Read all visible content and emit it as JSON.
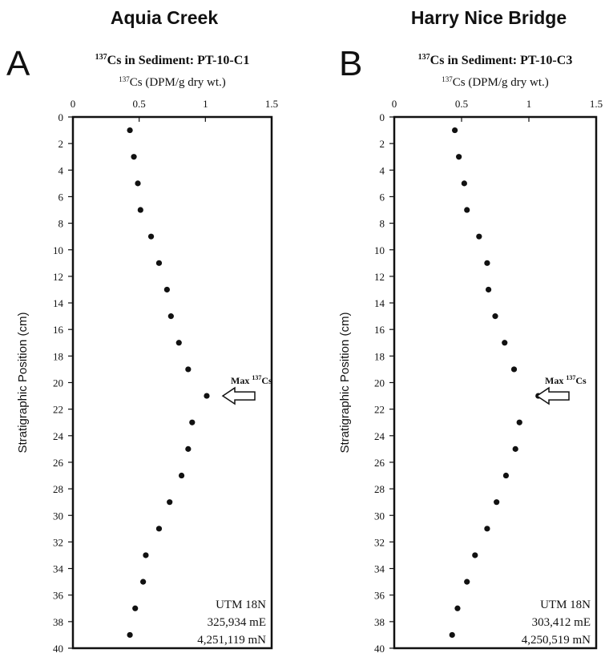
{
  "chart_data": [
    {
      "type": "scatter",
      "site": "Aquia Creek",
      "panel_letter": "A",
      "title_prefix": "137",
      "title": "Cs in Sediment: PT-10-C1",
      "xlabel_sup": "137",
      "xlabel": "Cs (DPM/g dry wt.)",
      "ylabel": "Stratigraphic Position (cm)",
      "xlim": [
        0,
        1.5
      ],
      "ylim": [
        0,
        40
      ],
      "x_ticks": [
        "0",
        "0.5",
        "1",
        "1.5"
      ],
      "y_ticks": [
        "0",
        "2",
        "4",
        "6",
        "8",
        "10",
        "12",
        "14",
        "16",
        "18",
        "20",
        "22",
        "24",
        "26",
        "28",
        "30",
        "32",
        "34",
        "36",
        "38",
        "40"
      ],
      "y_inverted": true,
      "points": [
        {
          "x": 0.43,
          "y": 1
        },
        {
          "x": 0.46,
          "y": 3
        },
        {
          "x": 0.49,
          "y": 5
        },
        {
          "x": 0.51,
          "y": 7
        },
        {
          "x": 0.59,
          "y": 9
        },
        {
          "x": 0.65,
          "y": 11
        },
        {
          "x": 0.71,
          "y": 13
        },
        {
          "x": 0.74,
          "y": 15
        },
        {
          "x": 0.8,
          "y": 17
        },
        {
          "x": 0.87,
          "y": 19
        },
        {
          "x": 1.01,
          "y": 21
        },
        {
          "x": 0.9,
          "y": 23
        },
        {
          "x": 0.87,
          "y": 25
        },
        {
          "x": 0.82,
          "y": 27
        },
        {
          "x": 0.73,
          "y": 29
        },
        {
          "x": 0.65,
          "y": 31
        },
        {
          "x": 0.55,
          "y": 33
        },
        {
          "x": 0.53,
          "y": 35
        },
        {
          "x": 0.47,
          "y": 37
        },
        {
          "x": 0.43,
          "y": 39
        }
      ],
      "annotation": {
        "text": "Max",
        "sup": "137",
        "suffix": "Cs",
        "depth": 21
      },
      "utm": [
        "UTM 18N",
        "325,934 mE",
        "4,251,119 mN"
      ]
    },
    {
      "type": "scatter",
      "site": "Harry Nice Bridge",
      "panel_letter": "B",
      "title_prefix": "137",
      "title": "Cs in Sediment: PT-10-C3",
      "xlabel_sup": "137",
      "xlabel": "Cs (DPM/g dry wt.)",
      "ylabel": "Stratigraphic Position (cm)",
      "xlim": [
        0,
        1.5
      ],
      "ylim": [
        0,
        40
      ],
      "x_ticks": [
        "0",
        "0.5",
        "1",
        "1.5"
      ],
      "y_ticks": [
        "0",
        "2",
        "4",
        "6",
        "8",
        "10",
        "12",
        "14",
        "16",
        "18",
        "20",
        "22",
        "24",
        "26",
        "28",
        "30",
        "32",
        "34",
        "36",
        "38",
        "40"
      ],
      "y_inverted": true,
      "points": [
        {
          "x": 0.45,
          "y": 1
        },
        {
          "x": 0.48,
          "y": 3
        },
        {
          "x": 0.52,
          "y": 5
        },
        {
          "x": 0.54,
          "y": 7
        },
        {
          "x": 0.63,
          "y": 9
        },
        {
          "x": 0.69,
          "y": 11
        },
        {
          "x": 0.7,
          "y": 13
        },
        {
          "x": 0.75,
          "y": 15
        },
        {
          "x": 0.82,
          "y": 17
        },
        {
          "x": 0.89,
          "y": 19
        },
        {
          "x": 1.07,
          "y": 21
        },
        {
          "x": 0.93,
          "y": 23
        },
        {
          "x": 0.9,
          "y": 25
        },
        {
          "x": 0.83,
          "y": 27
        },
        {
          "x": 0.76,
          "y": 29
        },
        {
          "x": 0.69,
          "y": 31
        },
        {
          "x": 0.6,
          "y": 33
        },
        {
          "x": 0.54,
          "y": 35
        },
        {
          "x": 0.47,
          "y": 37
        },
        {
          "x": 0.43,
          "y": 39
        }
      ],
      "annotation": {
        "text": "Max",
        "sup": "137",
        "suffix": "Cs",
        "depth": 21
      },
      "utm": [
        "UTM 18N",
        "303,412 mE",
        "4,250,519 mN"
      ]
    }
  ]
}
